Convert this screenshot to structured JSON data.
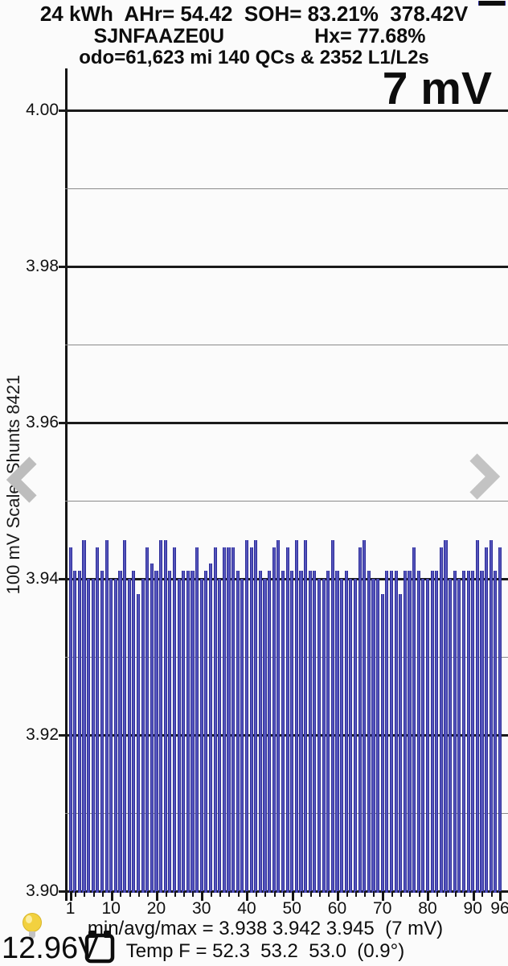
{
  "header": {
    "line1": "24 kWh  AHr= 54.42  SOH= 83.21%  378.42V",
    "vin": "SJNFAAZE0U",
    "hx": "Hx= 77.68%",
    "line3": "odo=61,623 mi 140 QCs & 2352 L1/L2s"
  },
  "chart_data": {
    "type": "bar",
    "annotation": "7 mV",
    "ylabel": "100 mV Scale  Shunts 8421",
    "ylim": [
      3.9,
      4.0
    ],
    "grid_step_minor": 0.01,
    "y_tick_labels": [
      "4.00",
      "3.98",
      "3.96",
      "3.94",
      "3.92",
      "3.90"
    ],
    "x_major_ticks": [
      1,
      10,
      20,
      30,
      40,
      50,
      60,
      70,
      80,
      90,
      96
    ],
    "n_cells": 96,
    "bar_color": "#5454bb",
    "values": [
      3.944,
      3.941,
      3.941,
      3.945,
      3.94,
      3.94,
      3.944,
      3.941,
      3.945,
      3.94,
      3.94,
      3.941,
      3.945,
      3.94,
      3.941,
      3.938,
      3.94,
      3.944,
      3.942,
      3.941,
      3.945,
      3.945,
      3.941,
      3.944,
      3.94,
      3.941,
      3.941,
      3.941,
      3.944,
      3.94,
      3.941,
      3.942,
      3.944,
      3.94,
      3.944,
      3.944,
      3.944,
      3.941,
      3.94,
      3.945,
      3.944,
      3.945,
      3.941,
      3.94,
      3.941,
      3.944,
      3.945,
      3.941,
      3.944,
      3.941,
      3.945,
      3.941,
      3.945,
      3.941,
      3.941,
      3.94,
      3.94,
      3.941,
      3.945,
      3.941,
      3.94,
      3.941,
      3.94,
      3.94,
      3.944,
      3.945,
      3.941,
      3.94,
      3.94,
      3.938,
      3.941,
      3.941,
      3.941,
      3.938,
      3.941,
      3.941,
      3.944,
      3.941,
      3.94,
      3.94,
      3.941,
      3.941,
      3.944,
      3.945,
      3.94,
      3.941,
      3.94,
      3.941,
      3.941,
      3.941,
      3.945,
      3.941,
      3.944,
      3.945,
      3.941,
      3.944
    ]
  },
  "footer": {
    "stats_line": "min/avg/max = 3.938 3.942 3.945  (7 mV)",
    "temp_line": "Temp F = 52.3  53.2  53.0  (0.9°)",
    "aux_voltage": "12.96V"
  }
}
